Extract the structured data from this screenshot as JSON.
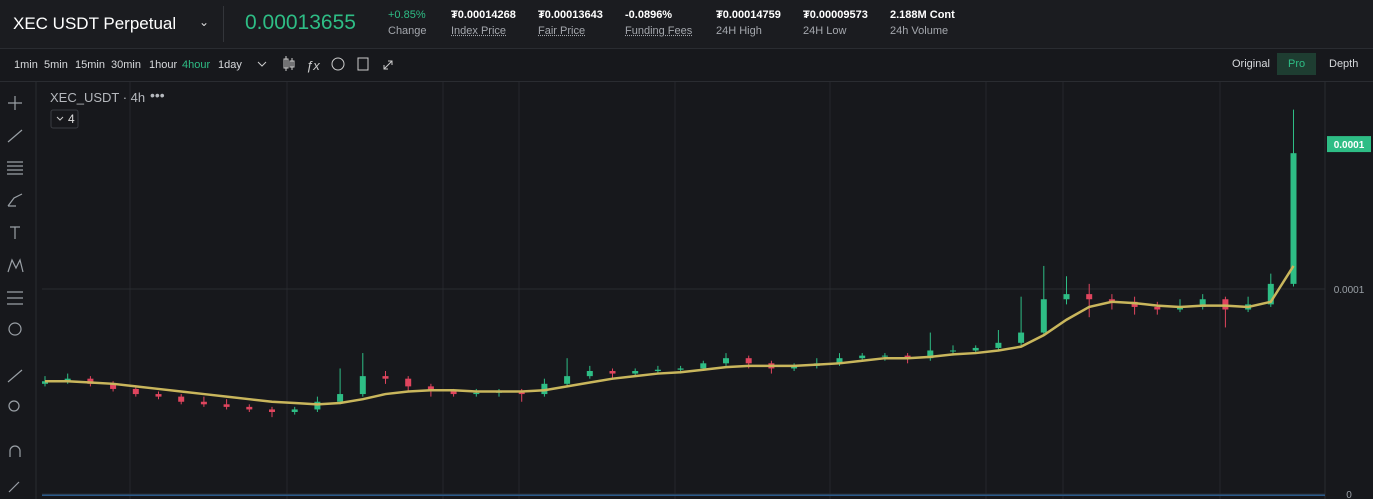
{
  "header": {
    "symbol": "XEC USDT Perpetual",
    "price": "0.00013655",
    "change": {
      "value": "+0.85%",
      "label": "Change"
    },
    "stats": [
      {
        "value": "₮0.00014268",
        "label": "Index Price"
      },
      {
        "value": "₮0.00013643",
        "label": "Fair Price"
      },
      {
        "value": "-0.0896%",
        "label": "Funding Fees"
      },
      {
        "value": "₮0.00014759",
        "label": "24H High"
      },
      {
        "value": "₮0.00009573",
        "label": "24H Low"
      },
      {
        "value": "2.188M Cont",
        "label": "24h Volume"
      }
    ]
  },
  "toolbar": {
    "intervals": [
      "1min",
      "5min",
      "15min",
      "30min",
      "1hour",
      "4hour",
      "1day"
    ],
    "active_interval": 5,
    "views": [
      "Original",
      "Pro",
      "Depth"
    ],
    "active_view": 1
  },
  "chart_data": {
    "type": "candlestick",
    "title": "XEC_USDT · 4h",
    "indicator_count": "4",
    "ylim": [
      0,
      0.00016
    ],
    "yticks": [
      {
        "value": 8e-05,
        "label": "0.0001"
      },
      0
    ],
    "price_tag": {
      "value": 0.00013655,
      "label": "0.0001"
    },
    "grid": true,
    "up_color": "#2ebd85",
    "down_color": "#e0455e",
    "ma_color": "#c9b65c",
    "candles": [
      [
        4.3e-05,
        4.6e-05,
        4.2e-05,
        4.4e-05
      ],
      [
        4.4e-05,
        4.7e-05,
        4.3e-05,
        4.5e-05
      ],
      [
        4.5e-05,
        4.6e-05,
        4.2e-05,
        4.3e-05
      ],
      [
        4.3e-05,
        4.4e-05,
        4e-05,
        4.1e-05
      ],
      [
        4.1e-05,
        4.2e-05,
        3.8e-05,
        3.9e-05
      ],
      [
        3.9e-05,
        4e-05,
        3.7e-05,
        3.8e-05
      ],
      [
        3.8e-05,
        3.9e-05,
        3.5e-05,
        3.6e-05
      ],
      [
        3.6e-05,
        3.8e-05,
        3.4e-05,
        3.5e-05
      ],
      [
        3.5e-05,
        3.7e-05,
        3.3e-05,
        3.4e-05
      ],
      [
        3.4e-05,
        3.5e-05,
        3.2e-05,
        3.3e-05
      ],
      [
        3.3e-05,
        3.4e-05,
        3e-05,
        3.2e-05
      ],
      [
        3.2e-05,
        3.4e-05,
        3.1e-05,
        3.3e-05
      ],
      [
        3.3e-05,
        3.8e-05,
        3.2e-05,
        3.6e-05
      ],
      [
        3.6e-05,
        4.9e-05,
        3.5e-05,
        3.9e-05
      ],
      [
        3.9e-05,
        5.5e-05,
        3.8e-05,
        4.6e-05
      ],
      [
        4.6e-05,
        4.8e-05,
        4.3e-05,
        4.5e-05
      ],
      [
        4.5e-05,
        4.6e-05,
        4e-05,
        4.2e-05
      ],
      [
        4.2e-05,
        4.3e-05,
        3.8e-05,
        4e-05
      ],
      [
        4e-05,
        4.1e-05,
        3.8e-05,
        3.9e-05
      ],
      [
        3.9e-05,
        4.1e-05,
        3.8e-05,
        3.95e-05
      ],
      [
        3.95e-05,
        4.1e-05,
        3.8e-05,
        4e-05
      ],
      [
        4e-05,
        4.1e-05,
        3.6e-05,
        3.9e-05
      ],
      [
        3.9e-05,
        4.5e-05,
        3.8e-05,
        4.3e-05
      ],
      [
        4.3e-05,
        5.3e-05,
        4.2e-05,
        4.6e-05
      ],
      [
        4.6e-05,
        5e-05,
        4.5e-05,
        4.8e-05
      ],
      [
        4.8e-05,
        4.9e-05,
        4.5e-05,
        4.7e-05
      ],
      [
        4.7e-05,
        4.9e-05,
        4.6e-05,
        4.8e-05
      ],
      [
        4.8e-05,
        5e-05,
        4.7e-05,
        4.85e-05
      ],
      [
        4.85e-05,
        5e-05,
        4.7e-05,
        4.9e-05
      ],
      [
        4.9e-05,
        5.2e-05,
        4.8e-05,
        5.1e-05
      ],
      [
        5.1e-05,
        5.5e-05,
        5e-05,
        5.3e-05
      ],
      [
        5.3e-05,
        5.4e-05,
        4.9e-05,
        5.1e-05
      ],
      [
        5.1e-05,
        5.2e-05,
        4.7e-05,
        4.9e-05
      ],
      [
        4.9e-05,
        5.1e-05,
        4.8e-05,
        5e-05
      ],
      [
        5e-05,
        5.3e-05,
        4.9e-05,
        5.1e-05
      ],
      [
        5.1e-05,
        5.5e-05,
        5e-05,
        5.3e-05
      ],
      [
        5.3e-05,
        5.5e-05,
        5.2e-05,
        5.4e-05
      ],
      [
        5.4e-05,
        5.5e-05,
        5.2e-05,
        5.4e-05
      ],
      [
        5.4e-05,
        5.5e-05,
        5.1e-05,
        5.3e-05
      ],
      [
        5.3e-05,
        6.3e-05,
        5.2e-05,
        5.6e-05
      ],
      [
        5.6e-05,
        5.8e-05,
        5.4e-05,
        5.6e-05
      ],
      [
        5.6e-05,
        5.8e-05,
        5.5e-05,
        5.7e-05
      ],
      [
        5.7e-05,
        6.4e-05,
        5.6e-05,
        5.9e-05
      ],
      [
        5.9e-05,
        7.7e-05,
        5.8e-05,
        6.3e-05
      ],
      [
        6.3e-05,
        8.9e-05,
        6.2e-05,
        7.6e-05
      ],
      [
        7.6e-05,
        8.5e-05,
        7.4e-05,
        7.8e-05
      ],
      [
        7.8e-05,
        8.2e-05,
        6.9e-05,
        7.6e-05
      ],
      [
        7.6e-05,
        7.8e-05,
        7.2e-05,
        7.5e-05
      ],
      [
        7.5e-05,
        7.7e-05,
        7e-05,
        7.3e-05
      ],
      [
        7.3e-05,
        7.5e-05,
        7e-05,
        7.2e-05
      ],
      [
        7.2e-05,
        7.6e-05,
        7.1e-05,
        7.3e-05
      ],
      [
        7.3e-05,
        7.8e-05,
        7.2e-05,
        7.6e-05
      ],
      [
        7.6e-05,
        7.7e-05,
        6.5e-05,
        7.2e-05
      ],
      [
        7.2e-05,
        7.7e-05,
        7.1e-05,
        7.4e-05
      ],
      [
        7.4e-05,
        8.6e-05,
        7.3e-05,
        8.2e-05
      ],
      [
        8.2e-05,
        0.00015,
        8.1e-05,
        0.000133
      ]
    ],
    "ma": [
      4.4e-05,
      4.4e-05,
      4.35e-05,
      4.3e-05,
      4.2e-05,
      4.1e-05,
      4e-05,
      3.9e-05,
      3.8e-05,
      3.7e-05,
      3.6e-05,
      3.55e-05,
      3.5e-05,
      3.55e-05,
      3.7e-05,
      3.9e-05,
      4e-05,
      4.05e-05,
      4.05e-05,
      4e-05,
      4e-05,
      4e-05,
      4.05e-05,
      4.2e-05,
      4.35e-05,
      4.5e-05,
      4.6e-05,
      4.7e-05,
      4.75e-05,
      4.85e-05,
      4.95e-05,
      5e-05,
      5e-05,
      5e-05,
      5.05e-05,
      5.1e-05,
      5.2e-05,
      5.3e-05,
      5.3e-05,
      5.35e-05,
      5.45e-05,
      5.5e-05,
      5.6e-05,
      5.75e-05,
      6.2e-05,
      6.8e-05,
      7.3e-05,
      7.5e-05,
      7.45e-05,
      7.35e-05,
      7.3e-05,
      7.35e-05,
      7.35e-05,
      7.3e-05,
      7.5e-05,
      8.9e-05
    ]
  }
}
